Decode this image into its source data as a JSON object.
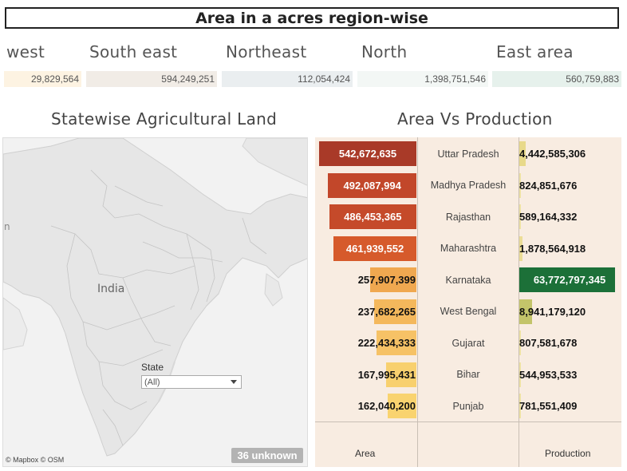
{
  "title": "Area in a acres region-wise",
  "regions": [
    {
      "label": "west",
      "value": "29,829,564",
      "color": "#fdf3e2"
    },
    {
      "label": "South east",
      "value": "594,249,251",
      "color": "#f1ece6"
    },
    {
      "label": "Northeast",
      "value": "112,054,424",
      "color": "#eaeef0"
    },
    {
      "label": "North",
      "value": "1,398,751,546",
      "color": "#f3f7f5"
    },
    {
      "label": "East area",
      "value": "560,759,883",
      "color": "#e6f1ec"
    }
  ],
  "map": {
    "title": "Statewise Agricultural Land",
    "country_label": "India",
    "edge_label": "n",
    "filter_label": "State",
    "filter_value": "(All)",
    "attribution": "© Mapbox © OSM",
    "unknown_badge": "36 unknown"
  },
  "chart_data": {
    "type": "table",
    "title": "Area Vs Production",
    "columns": [
      "Area",
      "",
      "Production"
    ],
    "rows": [
      {
        "state": "Uttar Pradesh",
        "area": "542,672,635",
        "area_value": 542672635,
        "production": "4,442,585,306",
        "production_value": 4442585306,
        "area_color": "#a93a28",
        "prod_color": "#e8d98a"
      },
      {
        "state": "Madhya Pradesh",
        "area": "492,087,994",
        "area_value": 492087994,
        "production": "824,851,676",
        "production_value": 824851676,
        "area_color": "#c2472a",
        "prod_color": "#efe3a4"
      },
      {
        "state": "Rajasthan",
        "area": "486,453,365",
        "area_value": 486453365,
        "production": "589,164,332",
        "production_value": 589164332,
        "area_color": "#c54a2a",
        "prod_color": "#efe3a4"
      },
      {
        "state": "Maharashtra",
        "area": "461,939,552",
        "area_value": 461939552,
        "production": "1,878,564,918",
        "production_value": 1878564918,
        "area_color": "#d65a2b",
        "prod_color": "#ecdd96"
      },
      {
        "state": "Karnataka",
        "area": "257,907,399",
        "area_value": 257907399,
        "production": "63,772,797,345",
        "production_value": 63772797345,
        "area_color": "#f0a850",
        "prod_color": "#1c7038"
      },
      {
        "state": "West Bengal",
        "area": "237,682,265",
        "area_value": 237682265,
        "production": "8,941,179,120",
        "production_value": 8941179120,
        "area_color": "#f4b85c",
        "prod_color": "#c3c46a"
      },
      {
        "state": "Gujarat",
        "area": "222,434,333",
        "area_value": 222434333,
        "production": "807,581,678",
        "production_value": 807581678,
        "area_color": "#f6c266",
        "prod_color": "#efe3a4"
      },
      {
        "state": "Bihar",
        "area": "167,995,431",
        "area_value": 167995431,
        "production": "544,953,533",
        "production_value": 544953533,
        "area_color": "#f8d06e",
        "prod_color": "#efe3a4"
      },
      {
        "state": "Punjab",
        "area": "162,040,200",
        "area_value": 162040200,
        "production": "781,551,409",
        "production_value": 781551409,
        "area_color": "#f9d36f",
        "prod_color": "#efe3a4"
      }
    ],
    "area_max": 542672635,
    "production_max": 63772797345
  }
}
